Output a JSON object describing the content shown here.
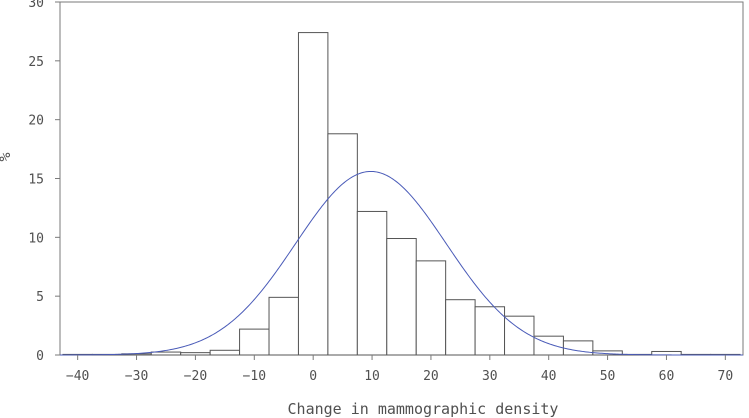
{
  "chart_data": {
    "type": "bar",
    "title": "",
    "xlabel": "Change in mammographic density",
    "ylabel": "%",
    "xlim": [
      -43,
      73
    ],
    "ylim": [
      0,
      30
    ],
    "xticks": [
      -40,
      -30,
      -20,
      -10,
      0,
      10,
      20,
      30,
      40,
      50,
      60,
      70
    ],
    "yticks": [
      0,
      5,
      10,
      15,
      20,
      25,
      30
    ],
    "xtick_labels": [
      "−40",
      "−30",
      "−20",
      "−10",
      "0",
      "10",
      "20",
      "30",
      "40",
      "50",
      "60",
      "70"
    ],
    "ytick_labels": [
      "0",
      "5",
      "10",
      "15",
      "20",
      "25",
      "30"
    ],
    "grid": false,
    "bin_width": 5,
    "histogram": {
      "bin_centers": [
        -40,
        -35,
        -30,
        -25,
        -20,
        -15,
        -10,
        -5,
        0,
        5,
        10,
        15,
        20,
        25,
        30,
        35,
        40,
        45,
        50,
        55,
        60,
        65,
        70
      ],
      "values": [
        0.05,
        0.05,
        0.1,
        0.25,
        0.2,
        0.4,
        2.2,
        4.9,
        27.4,
        18.8,
        12.2,
        9.9,
        8.0,
        4.7,
        4.1,
        3.3,
        1.6,
        1.2,
        0.35,
        0.05,
        0.3,
        0.05,
        0.05
      ]
    },
    "normal_curve": {
      "mean": 9.8,
      "sd": 12.8,
      "peak": 15.6,
      "color": "#4a5bb8"
    },
    "bar_fill": "#ffffff",
    "bar_stroke": "#555555"
  }
}
